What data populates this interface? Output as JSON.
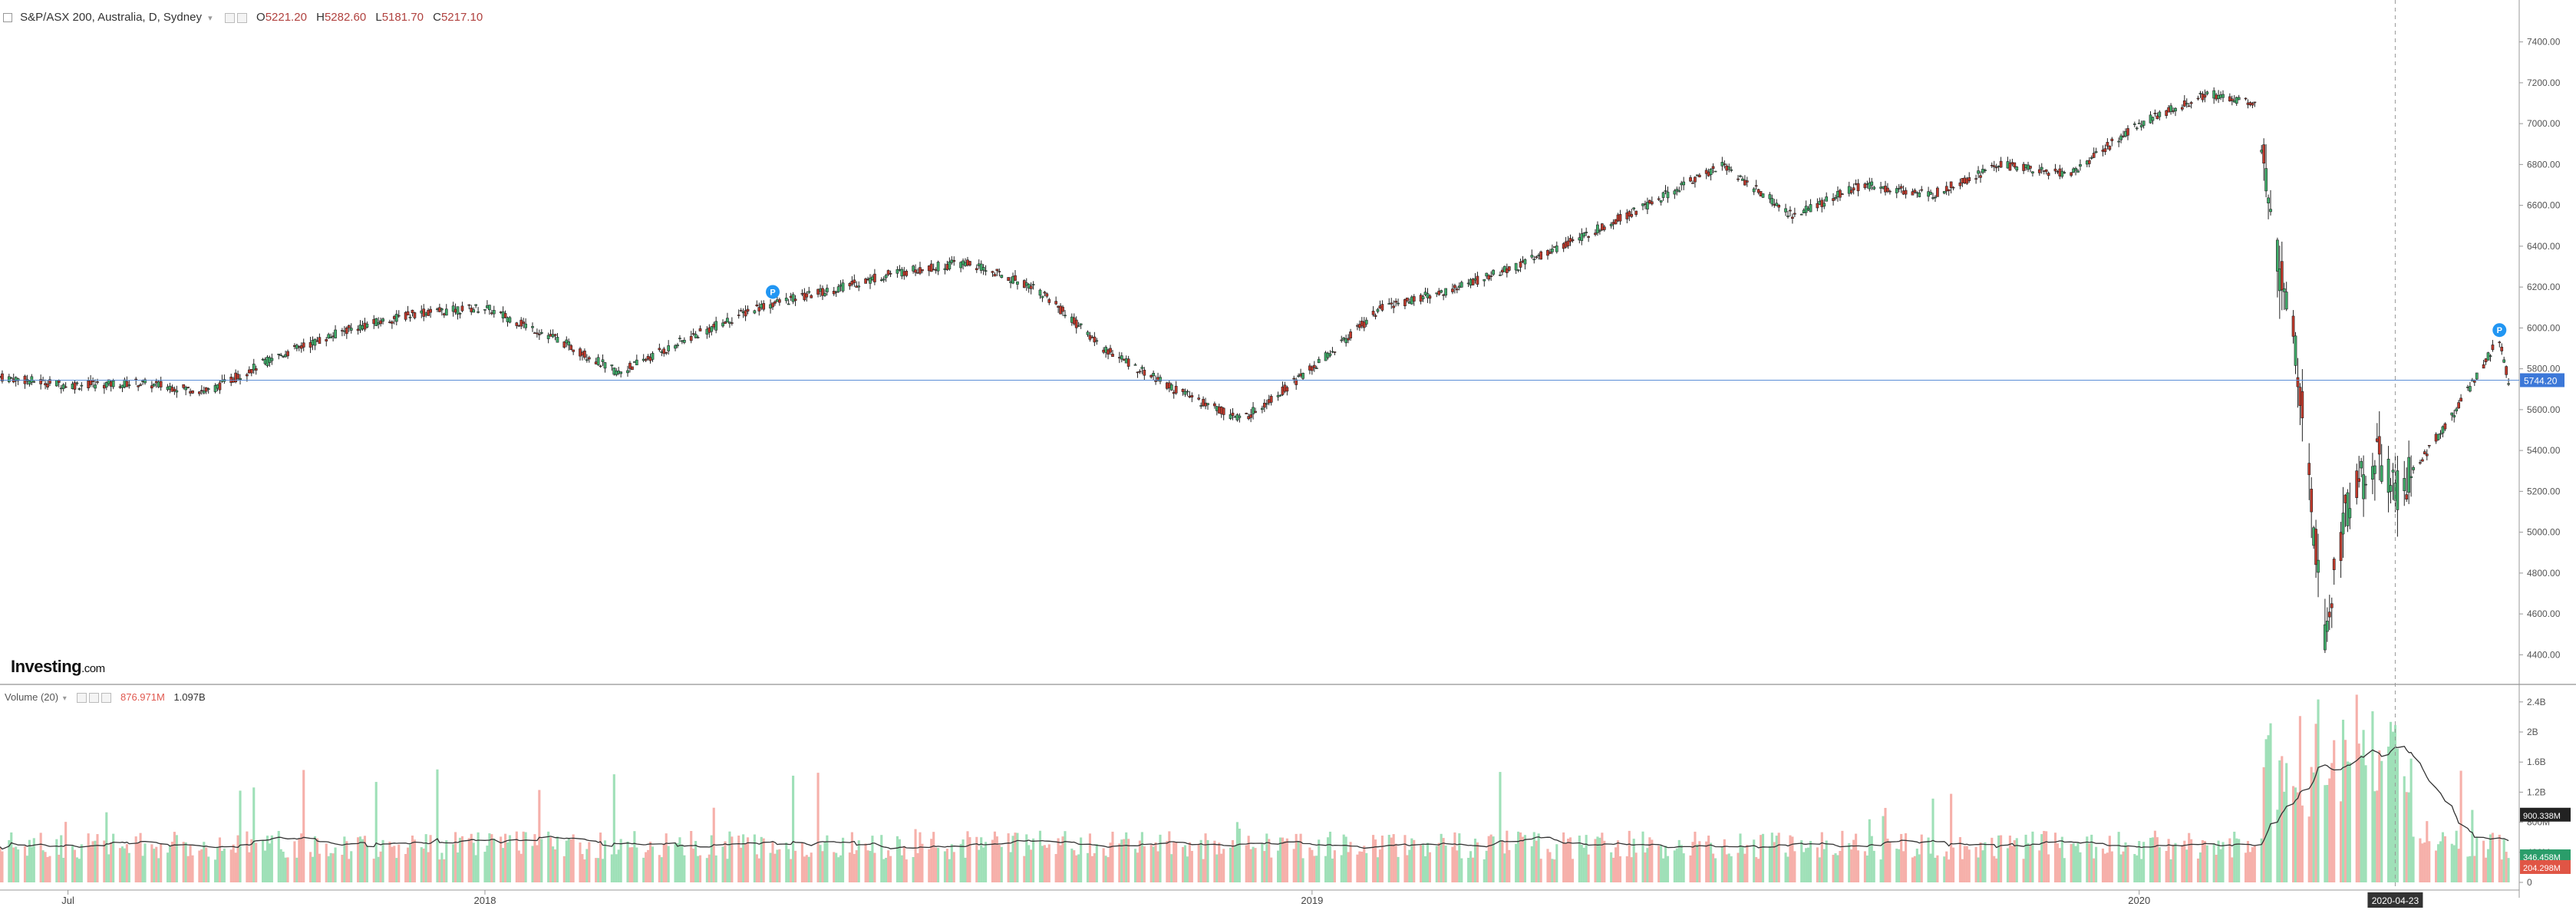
{
  "header": {
    "symbol": "S&P/ASX 200, Australia, D, Sydney",
    "open_label": "O",
    "open": "5221.20",
    "high_label": "H",
    "high": "5282.60",
    "low_label": "L",
    "low": "5181.70",
    "close_label": "C",
    "close": "5217.10"
  },
  "volume_legend": {
    "title": "Volume (20)",
    "value1": "876.971M",
    "value2": "1.097B"
  },
  "logo": {
    "main": "Investing",
    "suffix": ".com"
  },
  "chart_data": [
    {
      "type": "candlestick",
      "series_name": "S&P/ASX 200",
      "x_labels": [
        {
          "date": "2017-07",
          "label": "Jul"
        },
        {
          "date": "2018-01",
          "label": "2018"
        },
        {
          "date": "2019-01",
          "label": "2019"
        },
        {
          "date": "2020-01",
          "label": "2020"
        }
      ],
      "crosshair_date": "2020-04-23",
      "y_ticks": [
        4400,
        4600,
        4800,
        5000,
        5200,
        5400,
        5600,
        5800,
        6000,
        6200,
        6400,
        6600,
        6800,
        7000,
        7200,
        7400
      ],
      "y_tick_labels": [
        "4400.00",
        "4600.00",
        "4800.00",
        "5000.00",
        "5200.00",
        "5400.00",
        "5600.00",
        "5800.00",
        "6000.00",
        "6200.00",
        "6400.00",
        "6600.00",
        "6800.00",
        "7000.00",
        "7200.00",
        "7400.00"
      ],
      "ylim": [
        4300,
        7500
      ],
      "current_price": 5744.2,
      "current_price_label": "5744.20",
      "price_path": [
        {
          "date": "2017-06-01",
          "close": 5760
        },
        {
          "date": "2017-07-01",
          "close": 5720
        },
        {
          "date": "2017-08-01",
          "close": 5730
        },
        {
          "date": "2017-09-01",
          "close": 5690
        },
        {
          "date": "2017-10-01",
          "close": 5860
        },
        {
          "date": "2017-11-01",
          "close": 5990
        },
        {
          "date": "2017-12-01",
          "close": 6070
        },
        {
          "date": "2018-01-01",
          "close": 6100
        },
        {
          "date": "2018-02-01",
          "close": 5950
        },
        {
          "date": "2018-03-01",
          "close": 5780
        },
        {
          "date": "2018-04-01",
          "close": 5950
        },
        {
          "date": "2018-05-01",
          "close": 6100
        },
        {
          "date": "2018-06-01",
          "close": 6180
        },
        {
          "date": "2018-07-01",
          "close": 6270
        },
        {
          "date": "2018-08-01",
          "close": 6320
        },
        {
          "date": "2018-09-01",
          "close": 6200
        },
        {
          "date": "2018-10-01",
          "close": 5900
        },
        {
          "date": "2018-11-01",
          "close": 5700
        },
        {
          "date": "2018-12-01",
          "close": 5550
        },
        {
          "date": "2019-01-01",
          "close": 5800
        },
        {
          "date": "2019-02-01",
          "close": 6100
        },
        {
          "date": "2019-03-01",
          "close": 6180
        },
        {
          "date": "2019-04-01",
          "close": 6300
        },
        {
          "date": "2019-05-01",
          "close": 6450
        },
        {
          "date": "2019-06-01",
          "close": 6620
        },
        {
          "date": "2019-07-01",
          "close": 6800
        },
        {
          "date": "2019-08-01",
          "close": 6550
        },
        {
          "date": "2019-09-01",
          "close": 6700
        },
        {
          "date": "2019-10-01",
          "close": 6650
        },
        {
          "date": "2019-11-01",
          "close": 6800
        },
        {
          "date": "2019-12-01",
          "close": 6750
        },
        {
          "date": "2020-01-01",
          "close": 7000
        },
        {
          "date": "2020-02-01",
          "close": 7150
        },
        {
          "date": "2020-02-21",
          "close": 7100
        },
        {
          "date": "2020-03-01",
          "close": 6400
        },
        {
          "date": "2020-03-10",
          "close": 5900
        },
        {
          "date": "2020-03-23",
          "close": 4500
        },
        {
          "date": "2020-04-01",
          "close": 5100
        },
        {
          "date": "2020-04-15",
          "close": 5400
        },
        {
          "date": "2020-04-23",
          "close": 5200
        },
        {
          "date": "2020-05-01",
          "close": 5300
        },
        {
          "date": "2020-05-20",
          "close": 5600
        },
        {
          "date": "2020-06-08",
          "close": 5950
        },
        {
          "date": "2020-06-12",
          "close": 5740
        }
      ],
      "markers": [
        {
          "date": "2018-05-08",
          "label": "P"
        },
        {
          "date": "2020-06-08",
          "label": "P"
        }
      ]
    },
    {
      "type": "bar",
      "series_name": "Volume (20)",
      "y_tick_labels": [
        "0",
        "400M",
        "800M",
        "1.2B",
        "1.6B",
        "2B",
        "2.4B"
      ],
      "ylim": [
        0,
        2500000000
      ],
      "last_values": [
        {
          "label": "900.338M",
          "value": 900338000
        },
        {
          "label": "346.458M",
          "value": 346458000
        },
        {
          "label": "204.298M",
          "value": 204298000
        }
      ],
      "typical_volume": 550000000,
      "covid_spike_peak": 2200000000,
      "moving_average_period": 20
    }
  ],
  "colors": {
    "up": "#26a69a",
    "down": "#ef5350",
    "up_vol": "#9fe0b8",
    "down_vol": "#f6b0aa",
    "price_line": "#5a8ed6",
    "label_bg": "#3c78d8",
    "grid_axis": "#999999",
    "marker": "#2196f3"
  }
}
